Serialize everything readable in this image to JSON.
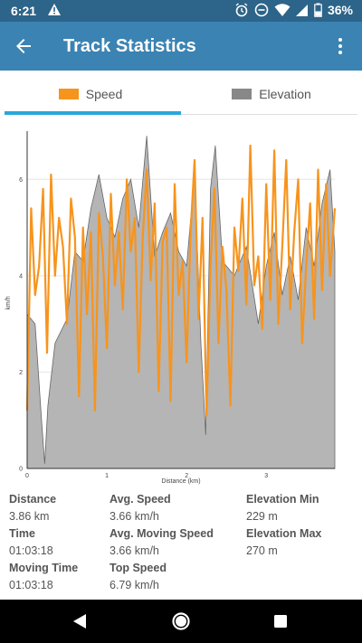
{
  "status_bar": {
    "time": "6:21",
    "battery": "36%",
    "icons": [
      "warning-icon",
      "alarm-icon",
      "dnd-icon",
      "wifi-icon",
      "signal-icon",
      "battery-icon"
    ]
  },
  "app_bar": {
    "title": "Track Statistics",
    "color": "#3b83b2",
    "status_color": "#2d6489"
  },
  "tabs": [
    {
      "label": "Speed",
      "color": "#f7941d",
      "selected": true
    },
    {
      "label": "Elevation",
      "color": "#888888",
      "selected": false
    }
  ],
  "chart_data": {
    "type": "line",
    "xlabel": "Distance (km)",
    "ylabel": "km/h",
    "xlim": [
      0,
      3.86
    ],
    "ylim": [
      0,
      7
    ],
    "x_ticks": [
      0,
      1,
      2,
      3
    ],
    "y_ticks": [
      0,
      2,
      4,
      6
    ],
    "grid": true,
    "series": [
      {
        "name": "Speed",
        "color": "#f7941d",
        "x": [
          0.0,
          0.05,
          0.1,
          0.15,
          0.2,
          0.25,
          0.3,
          0.35,
          0.4,
          0.45,
          0.5,
          0.55,
          0.6,
          0.65,
          0.7,
          0.75,
          0.8,
          0.85,
          0.9,
          0.95,
          1.0,
          1.05,
          1.1,
          1.15,
          1.2,
          1.25,
          1.3,
          1.35,
          1.4,
          1.45,
          1.5,
          1.55,
          1.6,
          1.65,
          1.7,
          1.75,
          1.8,
          1.85,
          1.9,
          1.95,
          2.0,
          2.05,
          2.1,
          2.15,
          2.2,
          2.25,
          2.3,
          2.35,
          2.4,
          2.45,
          2.5,
          2.55,
          2.6,
          2.65,
          2.7,
          2.75,
          2.8,
          2.85,
          2.9,
          2.95,
          3.0,
          3.05,
          3.1,
          3.15,
          3.2,
          3.25,
          3.3,
          3.35,
          3.4,
          3.45,
          3.5,
          3.55,
          3.6,
          3.65,
          3.7,
          3.75,
          3.8,
          3.86
        ],
        "y": [
          1.2,
          5.4,
          3.6,
          4.2,
          5.8,
          2.4,
          6.1,
          4.0,
          5.2,
          4.6,
          3.0,
          5.6,
          4.8,
          1.5,
          5.0,
          3.2,
          4.9,
          1.2,
          5.3,
          4.4,
          2.5,
          5.7,
          3.8,
          4.9,
          3.3,
          6.0,
          4.5,
          5.2,
          2.0,
          4.8,
          6.2,
          3.9,
          5.5,
          1.6,
          4.7,
          5.0,
          1.4,
          5.9,
          3.6,
          4.3,
          2.2,
          4.9,
          6.4,
          3.1,
          5.2,
          1.1,
          4.2,
          5.8,
          2.6,
          4.6,
          3.7,
          1.3,
          5.0,
          4.1,
          5.6,
          3.4,
          6.7,
          3.8,
          4.4,
          2.9,
          5.9,
          3.5,
          6.6,
          3.0,
          4.6,
          6.4,
          3.3,
          4.9,
          6.0,
          2.6,
          4.2,
          5.5,
          3.1,
          6.2,
          3.7,
          5.9,
          4.0,
          5.4
        ]
      },
      {
        "name": "Elevation",
        "color": "#888888",
        "x": [
          0.0,
          0.1,
          0.18,
          0.22,
          0.26,
          0.35,
          0.5,
          0.6,
          0.7,
          0.8,
          0.9,
          1.0,
          1.1,
          1.2,
          1.3,
          1.4,
          1.5,
          1.6,
          1.7,
          1.8,
          1.9,
          2.0,
          2.1,
          2.18,
          2.24,
          2.3,
          2.36,
          2.45,
          2.6,
          2.75,
          2.9,
          3.0,
          3.1,
          3.2,
          3.3,
          3.4,
          3.5,
          3.6,
          3.7,
          3.8,
          3.86
        ],
        "y": [
          3.2,
          3.0,
          1.0,
          0.1,
          1.3,
          2.6,
          3.1,
          4.5,
          4.3,
          5.4,
          6.1,
          5.2,
          4.8,
          5.6,
          6.0,
          5.0,
          6.9,
          4.4,
          4.9,
          5.3,
          4.5,
          4.2,
          6.1,
          2.6,
          0.7,
          5.8,
          6.7,
          4.3,
          4.0,
          4.6,
          3.0,
          4.2,
          4.9,
          3.6,
          4.4,
          3.5,
          5.0,
          4.2,
          5.5,
          6.2,
          4.5
        ]
      }
    ]
  },
  "stats": {
    "col1": [
      {
        "label": "Distance",
        "value": "3.86 km"
      },
      {
        "label": "Time",
        "value": "01:03:18"
      },
      {
        "label": "Moving Time",
        "value": "01:03:18"
      }
    ],
    "col2": [
      {
        "label": "Avg. Speed",
        "value": "3.66 km/h"
      },
      {
        "label": "Avg. Moving Speed",
        "value": "3.66 km/h"
      },
      {
        "label": "Top Speed",
        "value": "6.79 km/h"
      }
    ],
    "col3": [
      {
        "label": "Elevation Min",
        "value": "229 m"
      },
      {
        "label": "Elevation Max",
        "value": "270 m"
      }
    ]
  },
  "nav_bar": {
    "icons": [
      "back-triangle-icon",
      "home-circle-icon",
      "recents-square-icon"
    ]
  }
}
